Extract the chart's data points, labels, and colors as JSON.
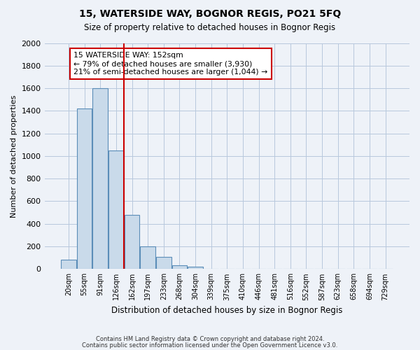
{
  "title": "15, WATERSIDE WAY, BOGNOR REGIS, PO21 5FQ",
  "subtitle": "Size of property relative to detached houses in Bognor Regis",
  "xlabel": "Distribution of detached houses by size in Bognor Regis",
  "ylabel": "Number of detached properties",
  "bin_labels": [
    "20sqm",
    "55sqm",
    "91sqm",
    "126sqm",
    "162sqm",
    "197sqm",
    "233sqm",
    "268sqm",
    "304sqm",
    "339sqm",
    "375sqm",
    "410sqm",
    "446sqm",
    "481sqm",
    "516sqm",
    "552sqm",
    "587sqm",
    "623sqm",
    "658sqm",
    "694sqm",
    "729sqm"
  ],
  "bar_heights": [
    80,
    1420,
    1600,
    1050,
    480,
    200,
    105,
    35,
    20,
    0,
    0,
    0,
    0,
    0,
    0,
    0,
    0,
    0,
    0,
    0,
    0
  ],
  "bar_color": "#c9daea",
  "bar_edge_color": "#5b8db8",
  "vline_pos": 3.5,
  "vline_color": "#cc0000",
  "ylim": [
    0,
    2000
  ],
  "yticks": [
    0,
    200,
    400,
    600,
    800,
    1000,
    1200,
    1400,
    1600,
    1800,
    2000
  ],
  "annotation_box_text": "15 WATERSIDE WAY: 152sqm\n← 79% of detached houses are smaller (3,930)\n21% of semi-detached houses are larger (1,044) →",
  "footer_line1": "Contains HM Land Registry data © Crown copyright and database right 2024.",
  "footer_line2": "Contains public sector information licensed under the Open Government Licence v3.0.",
  "background_color": "#eef2f8",
  "plot_bg_color": "#eef2f8",
  "grid_color": "#b8c8dd"
}
